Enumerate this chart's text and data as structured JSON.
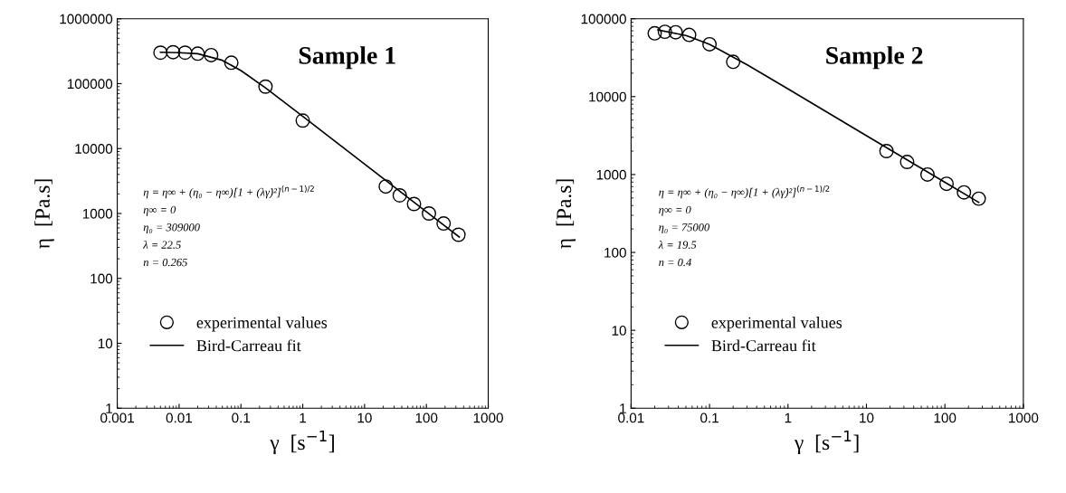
{
  "chart_data": [
    {
      "type": "scatter",
      "title": "Sample 1",
      "xlabel": "γ  [s$^{−1}$]",
      "ylabel": "η  [Pa.s]",
      "log": "xy",
      "xlim": [
        0.001,
        1000
      ],
      "xticks": [
        0.001,
        0.01,
        0.1,
        1,
        10,
        100,
        1000
      ],
      "ylim": [
        1,
        1000000
      ],
      "yticks": [
        1,
        10,
        100,
        1000,
        10000,
        100000,
        1000000
      ],
      "grid": false,
      "legend": "bottom left",
      "annotations": [
        "η = η∞ + (η₀ − η∞)[1 + (λγ̇)²]$^{(n−1)/2}$",
        "η∞ = 0",
        "η₀ = 309000",
        "λ = 22.5",
        "n = 0.265"
      ],
      "series": [
        {
          "name": "experimental values",
          "marker": "circle",
          "color": "#000000",
          "x": [
            0.005,
            0.008,
            0.0125,
            0.02,
            0.033,
            0.07,
            0.25,
            1,
            22,
            37,
            63,
            110,
            190,
            330
          ],
          "values": [
            300000,
            305000,
            300000,
            290000,
            275000,
            210000,
            90000,
            27000,
            2600,
            1900,
            1400,
            1000,
            700,
            470
          ]
        },
        {
          "name": "Bird-Carreau fit",
          "type": "line",
          "color": "#000000",
          "x": [
            0.005,
            0.01,
            0.02,
            0.05,
            0.1,
            0.25,
            1,
            10,
            100,
            340
          ],
          "values": [
            305000,
            300000,
            289000,
            229000,
            159000,
            86000,
            31300,
            5780,
            1063,
            434
          ]
        }
      ]
    },
    {
      "type": "scatter",
      "title": "Sample 2",
      "xlabel": "γ  [s$^{−1}$]",
      "ylabel": "η  [Pa.s]",
      "log": "xy",
      "xlim": [
        0.01,
        1000
      ],
      "xticks": [
        0.01,
        0.1,
        1,
        10,
        100,
        1000
      ],
      "ylim": [
        1,
        100000
      ],
      "yticks": [
        1,
        10,
        100,
        1000,
        10000,
        100000
      ],
      "grid": false,
      "legend": "bottom left",
      "annotations": [
        "η = η∞ + (η₀ − η∞)[1 + (λγ̇)²]$^{(n−1)/2}$",
        "η∞ = 0",
        "η₀ = 75000",
        "λ = 19.5",
        "n = 0.4"
      ],
      "series": [
        {
          "name": "experimental values",
          "marker": "circle",
          "color": "#000000",
          "x": [
            0.02,
            0.027,
            0.037,
            0.055,
            0.1,
            0.2,
            18,
            33,
            60,
            105,
            175,
            270
          ],
          "values": [
            65000,
            68000,
            67000,
            62000,
            47000,
            28000,
            2000,
            1450,
            1000,
            760,
            590,
            490
          ]
        },
        {
          "name": "Bird-Carreau fit",
          "type": "line",
          "color": "#000000",
          "x": [
            0.022,
            0.05,
            0.1,
            0.3,
            1,
            10,
            100,
            270
          ],
          "values": [
            72000,
            61000,
            47000,
            25700,
            12600,
            3150,
            794,
            439
          ]
        }
      ]
    }
  ]
}
